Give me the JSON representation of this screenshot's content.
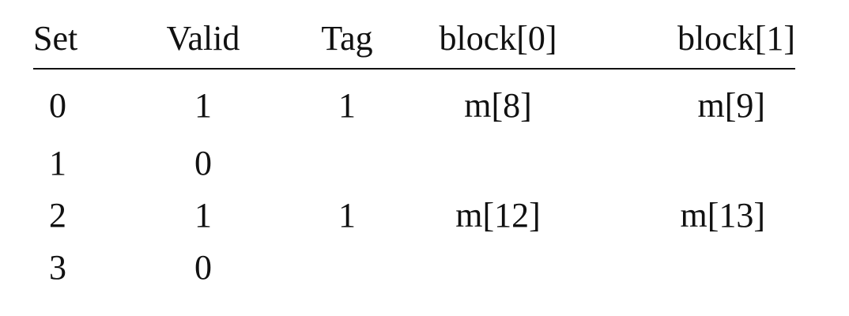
{
  "table": {
    "headers": {
      "set": "Set",
      "valid": "Valid",
      "tag": "Tag",
      "block0": "block[0]",
      "block1": "block[1]"
    },
    "rows": [
      {
        "set": "0",
        "valid": "1",
        "tag": "1",
        "block0": "m[8]",
        "block1": "m[9]"
      },
      {
        "set": "1",
        "valid": "0",
        "tag": "",
        "block0": "",
        "block1": ""
      },
      {
        "set": "2",
        "valid": "1",
        "tag": "1",
        "block0": "m[12]",
        "block1": "m[13]"
      },
      {
        "set": "3",
        "valid": "0",
        "tag": "",
        "block0": "",
        "block1": ""
      }
    ]
  }
}
